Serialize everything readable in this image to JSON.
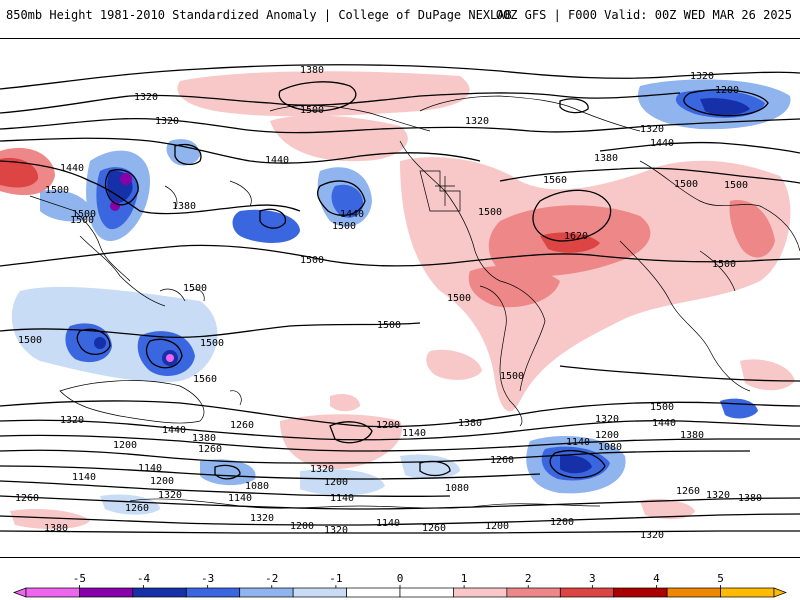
{
  "header": {
    "title": "850mb Height 1981-2010 Standardized Anomaly | College of DuPage NEXLAB",
    "run_info": "00Z GFS | F000 Valid: 00Z WED MAR 26 2025"
  },
  "contour_labels": [
    "1380",
    "1320",
    "1500",
    "1320",
    "1200",
    "1320",
    "1320",
    "1440",
    "1440",
    "1500",
    "1440",
    "1500",
    "1380",
    "1440",
    "1500",
    "1500",
    "1380",
    "1560",
    "1620",
    "1500",
    "1500",
    "1500",
    "1500",
    "1500",
    "1500",
    "1500",
    "1500",
    "1500",
    "1560",
    "1500",
    "1500",
    "1440",
    "1380",
    "1320",
    "1440",
    "1380",
    "1200",
    "1260",
    "1140",
    "1140",
    "1200",
    "1320",
    "1260",
    "1140",
    "1260",
    "1080",
    "1200",
    "1140",
    "1200",
    "1260",
    "1380",
    "1320",
    "1380",
    "1320",
    "1320",
    "1260",
    "1080",
    "1140",
    "1200",
    "1320",
    "1200",
    "1080",
    "1260",
    "1320",
    "1380",
    "1320",
    "1200",
    "1140",
    "1260",
    "1140",
    "1200",
    "1320",
    "1500"
  ],
  "legend": {
    "ticks": [
      "-5",
      "-4",
      "-3",
      "-2",
      "-1",
      "0",
      "1",
      "2",
      "3",
      "4",
      "5"
    ],
    "colors": [
      "#ee66ee",
      "#8800aa",
      "#1530a8",
      "#3a66e0",
      "#8fb4ee",
      "#c8dcf6",
      "#ffffff",
      "#ffffff",
      "#f8c8c8",
      "#ee8888",
      "#dd4444",
      "#aa0000",
      "#ee8800",
      "#ffbb00"
    ]
  }
}
